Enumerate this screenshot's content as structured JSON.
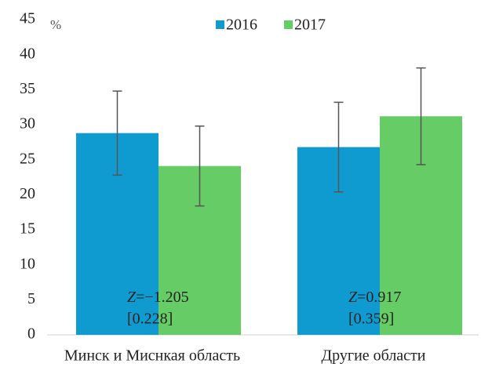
{
  "chart_data": {
    "type": "bar",
    "y_label": "%",
    "categories": [
      "Минск и Миснкая область",
      "Другие области"
    ],
    "series": [
      {
        "name": "2016",
        "color": "#0f9bd0",
        "values": [
          28.8,
          26.8
        ],
        "errors": [
          6.0,
          6.4
        ]
      },
      {
        "name": "2017",
        "color": "#66cc66",
        "values": [
          24.1,
          31.2
        ],
        "errors": [
          5.7,
          6.9
        ]
      }
    ],
    "annotations": [
      [
        "Z",
        "=−1.205",
        "[0.228]"
      ],
      [
        "Z",
        "=0.917",
        "[0.359]"
      ]
    ],
    "ylim": [
      0,
      45
    ],
    "yticks": [
      0,
      5,
      10,
      15,
      20,
      25,
      30,
      35,
      40,
      45
    ],
    "grid": false,
    "legend": "top"
  }
}
